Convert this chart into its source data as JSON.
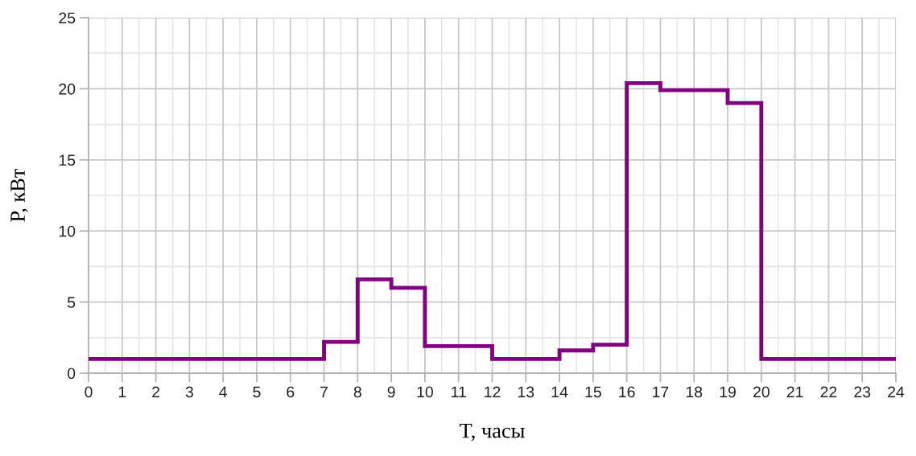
{
  "chart_data": {
    "type": "step",
    "xlabel": "T, часы",
    "ylabel": "P, кВт",
    "x": [
      0,
      7,
      8,
      9,
      10,
      12,
      14,
      15,
      16,
      17,
      19,
      20,
      24
    ],
    "series": [
      {
        "color": "#800080",
        "values": [
          1,
          2.2,
          6.6,
          6,
          1.9,
          1,
          1.6,
          2,
          20.4,
          19.9,
          19,
          1,
          1
        ]
      }
    ],
    "xlim": [
      0,
      24
    ],
    "xticks": [
      0,
      1,
      2,
      3,
      4,
      5,
      6,
      7,
      8,
      9,
      10,
      11,
      12,
      13,
      14,
      15,
      16,
      17,
      18,
      19,
      20,
      21,
      22,
      23,
      24
    ],
    "ylim": [
      0,
      25
    ],
    "yticks": [
      0,
      5,
      10,
      15,
      20,
      25
    ],
    "grid": true,
    "legend": false,
    "marker": "none",
    "line_style": "solid"
  }
}
